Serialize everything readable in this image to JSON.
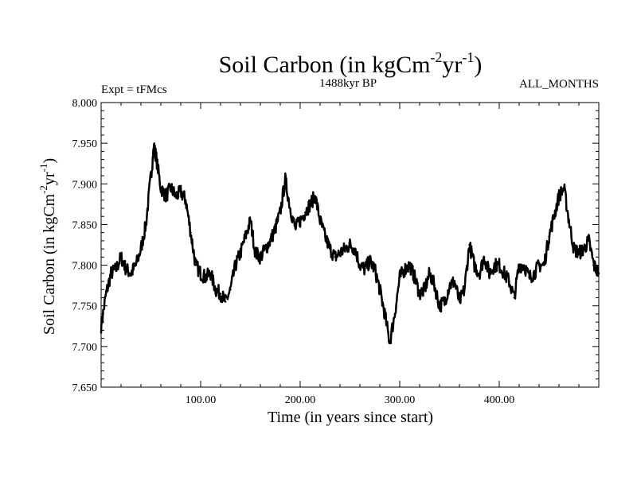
{
  "chart_data": {
    "type": "line",
    "title_main": "Soil Carbon (in kgCm",
    "title_sup1": "-2",
    "title_mid": "yr",
    "title_sup2": "-1",
    "title_end": ")",
    "subtitle_left": "Expt = tFMcs",
    "subtitle_center": "1488kyr BP",
    "subtitle_right": "ALL_MONTHS",
    "xlabel": "Time (in years since start)",
    "ylabel_main": "Soil Carbon (in kgCm",
    "ylabel_sup1": "-2",
    "ylabel_mid": "yr",
    "ylabel_sup2": "-1",
    "ylabel_end": ")",
    "xlim": [
      0,
      500
    ],
    "ylim": [
      7.65,
      8.0
    ],
    "xticks": [
      100,
      200,
      300,
      400
    ],
    "xtick_labels": [
      "100.00",
      "200.00",
      "300.00",
      "400.00"
    ],
    "yticks": [
      7.65,
      7.7,
      7.75,
      7.8,
      7.85,
      7.9,
      7.95,
      8.0
    ],
    "ytick_labels": [
      "7.650",
      "7.700",
      "7.750",
      "7.800",
      "7.850",
      "7.900",
      "7.950",
      "8.000"
    ],
    "series": [
      {
        "name": "Soil Carbon",
        "x": [
          0,
          5,
          10,
          15,
          20,
          25,
          30,
          35,
          40,
          45,
          50,
          53,
          55,
          60,
          65,
          70,
          75,
          80,
          85,
          90,
          95,
          100,
          105,
          110,
          115,
          120,
          125,
          130,
          135,
          140,
          145,
          150,
          155,
          160,
          165,
          170,
          175,
          180,
          185,
          190,
          195,
          200,
          205,
          210,
          215,
          220,
          225,
          230,
          235,
          240,
          245,
          250,
          255,
          260,
          265,
          270,
          275,
          280,
          285,
          290,
          295,
          300,
          305,
          310,
          315,
          320,
          325,
          330,
          335,
          340,
          345,
          350,
          355,
          360,
          365,
          370,
          375,
          380,
          385,
          390,
          395,
          400,
          405,
          410,
          415,
          420,
          425,
          430,
          435,
          440,
          445,
          450,
          455,
          460,
          465,
          470,
          475,
          480,
          485,
          490,
          495,
          500
        ],
        "y": [
          7.725,
          7.765,
          7.79,
          7.795,
          7.81,
          7.795,
          7.79,
          7.8,
          7.82,
          7.85,
          7.91,
          7.945,
          7.935,
          7.895,
          7.885,
          7.895,
          7.885,
          7.89,
          7.88,
          7.84,
          7.8,
          7.79,
          7.785,
          7.79,
          7.77,
          7.765,
          7.755,
          7.77,
          7.8,
          7.815,
          7.835,
          7.855,
          7.815,
          7.81,
          7.82,
          7.83,
          7.845,
          7.865,
          7.905,
          7.87,
          7.845,
          7.855,
          7.865,
          7.875,
          7.885,
          7.855,
          7.835,
          7.82,
          7.81,
          7.815,
          7.82,
          7.825,
          7.82,
          7.8,
          7.795,
          7.805,
          7.795,
          7.77,
          7.74,
          7.705,
          7.74,
          7.785,
          7.795,
          7.8,
          7.785,
          7.765,
          7.77,
          7.79,
          7.775,
          7.75,
          7.755,
          7.775,
          7.78,
          7.755,
          7.77,
          7.825,
          7.8,
          7.79,
          7.81,
          7.79,
          7.8,
          7.8,
          7.79,
          7.78,
          7.76,
          7.8,
          7.8,
          7.785,
          7.79,
          7.8,
          7.8,
          7.835,
          7.86,
          7.885,
          7.895,
          7.855,
          7.82,
          7.815,
          7.82,
          7.83,
          7.8,
          7.79
        ]
      }
    ]
  }
}
